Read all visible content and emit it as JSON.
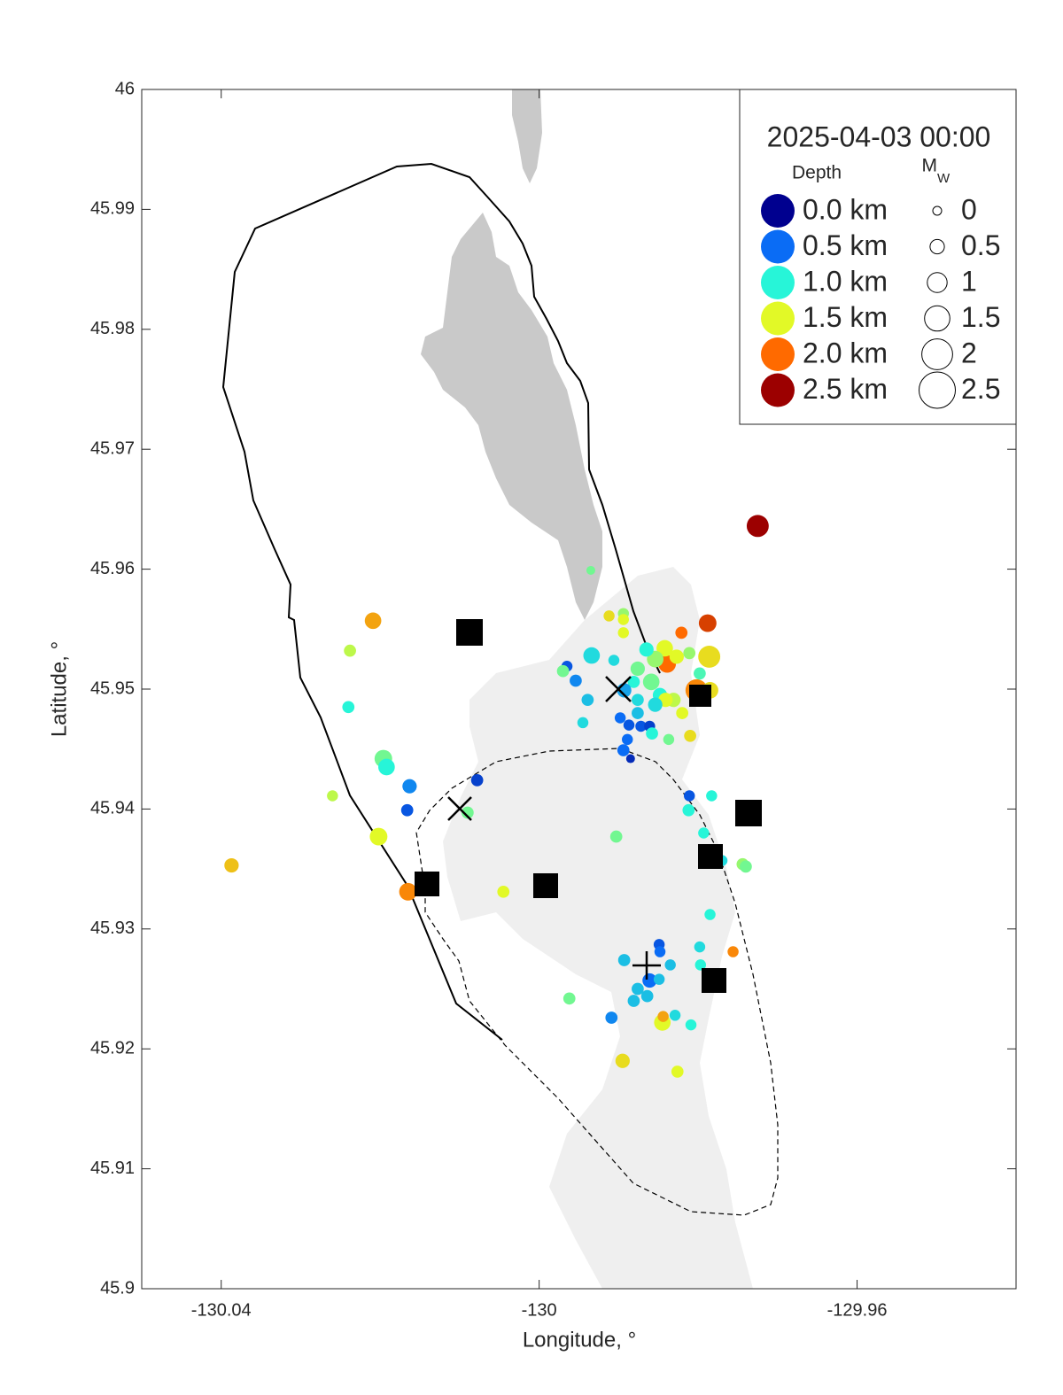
{
  "chart_data": {
    "type": "scatter",
    "title": "2025-04-03 00:00",
    "x_label": "Longitude, °",
    "y_label": "Latitude, °",
    "xlim": [
      -130.05,
      -129.94
    ],
    "ylim": [
      45.9,
      46
    ],
    "xticks": [
      -130.04,
      -130,
      -129.96
    ],
    "yticks": [
      45.9,
      45.91,
      45.92,
      45.93,
      45.94,
      45.95,
      45.96,
      45.97,
      45.98,
      45.99,
      46
    ],
    "depth_legend_title": "Depth",
    "depth_legend": [
      {
        "value": 0,
        "label": "0.0 km",
        "color": "#00008f"
      },
      {
        "value": 0.5,
        "label": "0.5 km",
        "color": "#0a6cf5"
      },
      {
        "value": 1,
        "label": "1.0 km",
        "color": "#27f5d8"
      },
      {
        "value": 1.5,
        "label": "1.5 km",
        "color": "#e2f927"
      },
      {
        "value": 2,
        "label": "2.0 km",
        "color": "#ff6a00"
      },
      {
        "value": 2.5,
        "label": "2.5 km",
        "color": "#9c0000"
      }
    ],
    "size_legend_title": "M",
    "size_legend_title_sub": "W",
    "size_legend": [
      0,
      0.5,
      1,
      1.5,
      2,
      2.5
    ],
    "x": [
      -129.9725,
      -129.9788,
      -129.9821,
      -129.9786,
      -129.9839,
      -129.9802,
      -129.9785,
      -129.9842,
      -129.9827,
      -129.9811,
      -129.9854,
      -129.9865,
      -129.9876,
      -129.9859,
      -129.9848,
      -129.9831,
      -129.982,
      -129.9876,
      -129.9881,
      -129.9893,
      -129.9876,
      -129.9898,
      -129.9887,
      -129.9872,
      -129.9861,
      -129.9858,
      -129.9837,
      -129.981,
      -129.9889,
      -129.9894,
      -129.9885,
      -129.9912,
      -129.9894,
      -129.9894,
      -129.9894,
      -129.9935,
      -129.9934,
      -129.9906,
      -129.9965,
      -129.997,
      -129.9954,
      -129.9939,
      -129.9945,
      -130.0209,
      -130.0238,
      -130.024,
      -130.0196,
      -130.0192,
      -130.0163,
      -130.0166,
      -130.0078,
      -130.009,
      -130.026,
      -130.0202,
      -130.0165,
      -130.0387,
      -130.0045,
      -129.9903,
      -129.9811,
      -129.9783,
      -129.9812,
      -129.9793,
      -129.9744,
      -129.974,
      -129.977,
      -129.9785,
      -129.9756,
      -129.9798,
      -129.9797,
      -129.9849,
      -129.9848,
      -129.9893,
      -129.9835,
      -129.9861,
      -129.9849,
      -129.9876,
      -129.9881,
      -129.9864,
      -129.9909,
      -129.9829,
      -129.9809,
      -129.9845,
      -129.9844,
      -129.9962,
      -129.9895,
      -129.9826,
      -129.9841,
      -129.9798,
      -129.9854
    ],
    "y": [
      45.9636,
      45.9555,
      45.9547,
      45.9527,
      45.9521,
      45.9499,
      45.9499,
      45.9534,
      45.9527,
      45.953,
      45.9525,
      45.9533,
      45.9517,
      45.9506,
      45.9495,
      45.9491,
      45.948,
      45.9491,
      45.9506,
      45.9499,
      45.948,
      45.9476,
      45.947,
      45.9469,
      45.9469,
      45.9463,
      45.9458,
      45.9461,
      45.9458,
      45.9449,
      45.9442,
      45.9561,
      45.9563,
      45.9558,
      45.9547,
      45.9599,
      45.9528,
      45.9524,
      45.9519,
      45.9515,
      45.9507,
      45.9491,
      45.9472,
      45.9557,
      45.9532,
      45.9485,
      45.9442,
      45.9435,
      45.9419,
      45.9399,
      45.9424,
      45.9397,
      45.9411,
      45.9377,
      45.9331,
      45.9353,
      45.9331,
      45.9377,
      45.9411,
      45.9411,
      45.9399,
      45.938,
      45.9354,
      45.9352,
      45.9357,
      45.9312,
      45.9281,
      45.9285,
      45.927,
      45.9287,
      45.9281,
      45.9274,
      45.927,
      45.9257,
      45.9258,
      45.925,
      45.924,
      45.9244,
      45.9226,
      45.9228,
      45.922,
      45.9222,
      45.9227,
      45.9242,
      45.919,
      45.9181,
      45.9491,
      45.9513,
      45.9487
    ],
    "depth": [
      2.5,
      2.2,
      2.0,
      1.6,
      2.0,
      1.9,
      1.6,
      1.5,
      1.5,
      1.3,
      1.3,
      1.0,
      1.2,
      1.2,
      1.0,
      1.4,
      1.5,
      0.9,
      1.0,
      0.7,
      0.8,
      0.5,
      0.4,
      0.4,
      0.3,
      1.0,
      1.2,
      1.6,
      0.5,
      0.5,
      0.2,
      1.6,
      1.3,
      1.5,
      1.5,
      1.2,
      0.9,
      0.9,
      0.4,
      1.2,
      0.6,
      0.8,
      0.9,
      1.8,
      1.4,
      1.0,
      1.2,
      1.0,
      0.6,
      0.4,
      0.3,
      1.2,
      1.4,
      1.5,
      1.9,
      1.7,
      1.5,
      1.2,
      0.4,
      1.0,
      1.0,
      1.0,
      1.3,
      1.2,
      0.9,
      1.0,
      1.9,
      0.9,
      1.0,
      0.4,
      0.5,
      0.8,
      0.8,
      0.5,
      0.8,
      0.8,
      0.8,
      0.8,
      0.6,
      0.9,
      1.0,
      1.5,
      1.8,
      1.2,
      1.6,
      1.5,
      1.5,
      1.1,
      0.9
    ],
    "magnitude": [
      1.2,
      0.8,
      0.3,
      1.2,
      0.8,
      1.2,
      0.7,
      0.7,
      0.5,
      0.3,
      0.7,
      0.5,
      0.5,
      0.7,
      0.5,
      0.5,
      0.3,
      0.3,
      0.3,
      0.5,
      0.3,
      0.2,
      0.2,
      0.2,
      0.2,
      0.3,
      0.2,
      0.3,
      0.2,
      0.3,
      0,
      0.2,
      0.2,
      0.2,
      0.2,
      0,
      0.7,
      0.2,
      0.2,
      0.3,
      0.3,
      0.3,
      0.2,
      0.7,
      0.3,
      0.3,
      0.8,
      0.7,
      0.5,
      0.3,
      0.3,
      0.3,
      0.2,
      0.8,
      0.8,
      0.5,
      0.3,
      0.3,
      0.2,
      0.2,
      0.3,
      0.2,
      0.3,
      0.3,
      0.2,
      0.2,
      0.2,
      0.2,
      0.2,
      0.2,
      0.2,
      0.3,
      0.2,
      0.5,
      0.2,
      0.3,
      0.3,
      0.3,
      0.3,
      0.2,
      0.2,
      0.7,
      0.2,
      0.3,
      0.5,
      0.3,
      0.5,
      0.3,
      0.5
    ]
  }
}
